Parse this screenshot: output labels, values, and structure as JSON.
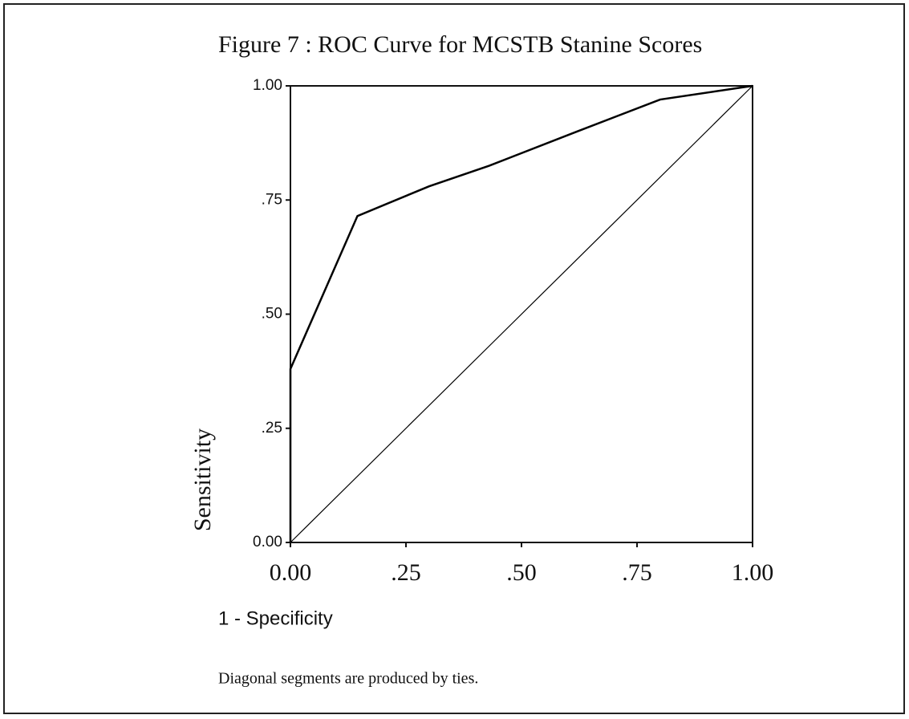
{
  "chart_data": {
    "type": "line",
    "title": "Figure 7 : ROC Curve for MCSTB Stanine Scores",
    "xlabel": "1 - Specificity",
    "ylabel": "Sensitivity",
    "note": "Diagonal segments are produced by ties.",
    "series": [
      {
        "x": [
          0,
          0,
          0.145,
          0.3,
          0.43,
          0.62,
          0.8,
          1
        ],
        "values": [
          0,
          0.38,
          0.715,
          0.78,
          0.825,
          0.9,
          0.97,
          1
        ],
        "color": "#000000"
      },
      {
        "x": [
          0,
          1
        ],
        "values": [
          0,
          1
        ],
        "color": "#000000"
      }
    ],
    "xlim": [
      0,
      1
    ],
    "ylim": [
      0,
      1
    ],
    "xticks": [
      {
        "value": 0,
        "label": "0.00"
      },
      {
        "value": 0.25,
        "label": ".25"
      },
      {
        "value": 0.5,
        "label": ".50"
      },
      {
        "value": 0.75,
        "label": ".75"
      },
      {
        "value": 1,
        "label": "1.00"
      }
    ],
    "yticks": [
      {
        "value": 0,
        "label": "0.00"
      },
      {
        "value": 0.25,
        "label": ".25"
      },
      {
        "value": 0.5,
        "label": ".50"
      },
      {
        "value": 0.75,
        "label": ".75"
      },
      {
        "value": 1,
        "label": "1.00"
      }
    ]
  }
}
